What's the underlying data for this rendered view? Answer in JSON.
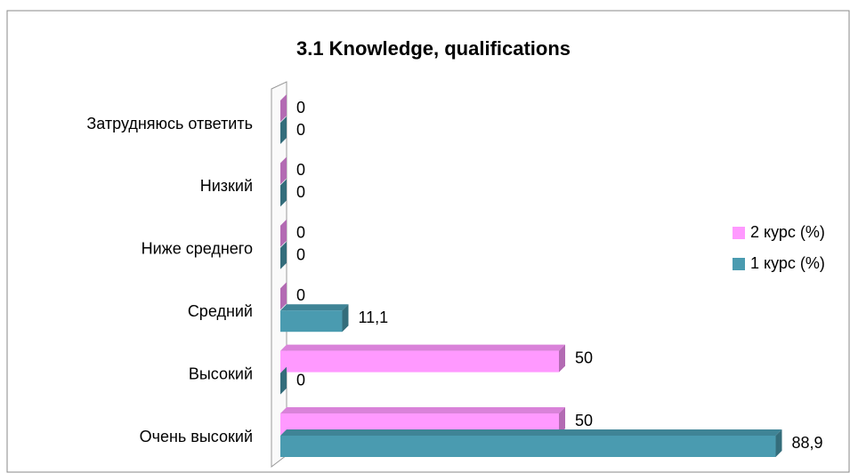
{
  "chart_data": {
    "type": "bar",
    "orientation": "horizontal",
    "title": "3.1 Knowledge, qualifications",
    "categories": [
      "Очень высокий",
      "Высокий",
      "Средний",
      "Ниже среднего",
      "Низкий",
      "Затрудняюсь ответить"
    ],
    "series": [
      {
        "name": "2 курс (%)",
        "color": "#ff99ff",
        "values": [
          50,
          50,
          0,
          0,
          0,
          0
        ]
      },
      {
        "name": "1 курс (%)",
        "color": "#4a9bb0",
        "values": [
          88.9,
          0,
          11.1,
          0,
          0,
          0
        ],
        "value_labels": [
          "88,9",
          "0",
          "11,1",
          "0",
          "0",
          "0"
        ]
      }
    ],
    "xlim": [
      0,
      100
    ],
    "legend": "right"
  }
}
